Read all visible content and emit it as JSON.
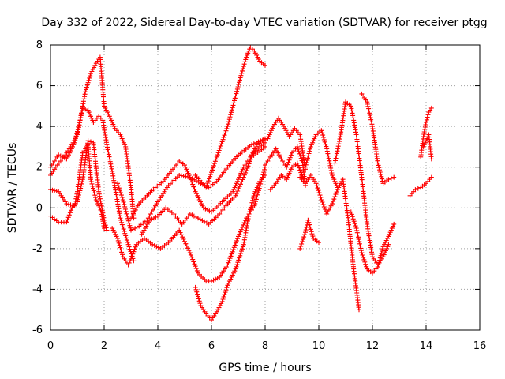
{
  "chart_data": {
    "type": "scatter",
    "title": "Day 332 of 2022, Sidereal Day-to-day VTEC variation (SDTVAR) for receiver ptgg",
    "xlabel": "GPS time / hours",
    "ylabel": "SDTVAR / TECUs",
    "xlim": [
      0,
      16
    ],
    "ylim": [
      -6,
      8
    ],
    "xticks": [
      "0",
      "2",
      "4",
      "6",
      "8",
      "10",
      "12",
      "14",
      "16"
    ],
    "yticks": [
      "-6",
      "-4",
      "-2",
      "0",
      "2",
      "4",
      "6",
      "8"
    ],
    "grid": true,
    "marker": "+",
    "color": "#ff0000",
    "series": [
      {
        "x": [
          0.0,
          0.3,
          0.6,
          0.9,
          1.1,
          1.3,
          1.5,
          1.7,
          1.85,
          2.0,
          2.2,
          2.4,
          2.6,
          2.8,
          3.0,
          3.1
        ],
        "y": [
          2.0,
          2.6,
          2.4,
          3.2,
          4.3,
          5.7,
          6.6,
          7.1,
          7.4,
          5.0,
          4.5,
          3.9,
          3.6,
          3.0,
          1.0,
          -0.5
        ]
      },
      {
        "x": [
          0.0,
          0.2,
          0.5,
          0.8,
          1.0,
          1.2,
          1.4,
          1.6,
          1.8,
          1.95,
          2.1,
          2.3,
          2.6,
          2.9,
          3.1
        ],
        "y": [
          1.6,
          2.0,
          2.5,
          3.1,
          3.6,
          4.9,
          4.8,
          4.2,
          4.5,
          4.3,
          3.1,
          1.8,
          -0.5,
          -1.8,
          -2.6
        ]
      },
      {
        "x": [
          0.0,
          0.3,
          0.6,
          0.8,
          1.0,
          1.2,
          1.4,
          1.6,
          1.8,
          2.0,
          2.1
        ],
        "y": [
          -0.4,
          -0.7,
          -0.7,
          0.0,
          0.3,
          1.4,
          3.3,
          3.2,
          0.8,
          -0.6,
          -1.1
        ]
      },
      {
        "x": [
          0.0,
          0.3,
          0.6,
          0.9,
          1.0,
          1.2,
          1.4,
          1.5,
          1.7,
          1.9,
          2.0
        ],
        "y": [
          0.9,
          0.8,
          0.2,
          0.1,
          0.8,
          2.7,
          3.1,
          1.4,
          0.4,
          -0.2,
          -1.0
        ]
      },
      {
        "x": [
          2.3,
          2.5,
          2.7,
          2.9,
          3.0,
          3.2,
          3.5,
          3.8,
          4.1,
          4.4,
          4.8,
          5.2,
          5.5,
          5.8,
          6.0,
          6.3,
          6.6,
          7.0,
          7.3,
          7.6,
          7.9,
          8.0
        ],
        "y": [
          -1.0,
          -1.5,
          -2.4,
          -2.8,
          -2.5,
          -1.8,
          -1.5,
          -1.8,
          -2.0,
          -1.7,
          -1.1,
          -2.2,
          -3.2,
          -3.6,
          -3.6,
          -3.4,
          -2.8,
          -1.4,
          -0.5,
          0.1,
          1.5,
          2.0
        ]
      },
      {
        "x": [
          2.5,
          2.7,
          3.0,
          3.3,
          3.6,
          4.0,
          4.4,
          4.8,
          5.2,
          5.6,
          5.9,
          6.2,
          6.6,
          7.0,
          7.5,
          8.0
        ],
        "y": [
          1.2,
          0.4,
          -1.1,
          -0.9,
          -0.6,
          0.3,
          1.1,
          1.6,
          1.5,
          1.2,
          1.0,
          1.3,
          2.0,
          2.6,
          3.1,
          3.4
        ]
      },
      {
        "x": [
          3.0,
          3.3,
          3.6,
          3.9,
          4.2,
          4.5,
          4.8,
          5.0,
          5.2,
          5.4,
          5.7,
          6.0,
          6.4,
          6.8,
          7.0,
          7.2,
          7.5,
          7.8,
          8.0
        ],
        "y": [
          -0.5,
          0.2,
          0.6,
          1.0,
          1.3,
          1.8,
          2.3,
          2.1,
          1.5,
          0.8,
          0.0,
          -0.2,
          0.3,
          0.8,
          1.4,
          2.0,
          2.6,
          3.0,
          3.2
        ]
      },
      {
        "x": [
          3.4,
          3.7,
          4.0,
          4.3,
          4.6,
          4.9,
          5.2,
          5.5,
          5.9,
          6.3,
          6.6,
          6.9,
          7.2,
          7.5,
          7.8,
          8.0
        ],
        "y": [
          -1.3,
          -0.6,
          -0.4,
          0.0,
          -0.3,
          -0.8,
          -0.3,
          -0.5,
          -0.8,
          -0.3,
          0.2,
          0.6,
          1.5,
          2.5,
          2.8,
          3.0
        ]
      },
      {
        "x": [
          5.4,
          5.6,
          5.8,
          6.0,
          6.2,
          6.4,
          6.6,
          6.9,
          7.2,
          7.4,
          7.6,
          7.8,
          8.0
        ],
        "y": [
          -3.9,
          -4.8,
          -5.2,
          -5.5,
          -5.1,
          -4.6,
          -3.8,
          -3.0,
          -1.8,
          -0.3,
          0.7,
          1.3,
          1.6
        ]
      },
      {
        "x": [
          5.4,
          5.8,
          6.2,
          6.6,
          6.9,
          7.1,
          7.3,
          7.45,
          7.6,
          7.8,
          8.0
        ],
        "y": [
          1.6,
          1.0,
          2.5,
          4.0,
          5.5,
          6.5,
          7.4,
          7.9,
          7.7,
          7.2,
          7.0
        ]
      },
      {
        "x": [
          7.5,
          7.7,
          7.9,
          8.1,
          8.3,
          8.5,
          8.7,
          8.9,
          9.1,
          9.3,
          9.5
        ],
        "y": [
          2.6,
          3.1,
          3.3,
          3.4,
          4.0,
          4.4,
          4.0,
          3.5,
          3.9,
          3.6,
          1.9
        ]
      },
      {
        "x": [
          8.0,
          8.2,
          8.4,
          8.6,
          8.8,
          9.0,
          9.2,
          9.4,
          9.5
        ],
        "y": [
          2.1,
          2.5,
          2.9,
          2.4,
          2.0,
          2.7,
          3.0,
          2.2,
          1.1
        ]
      },
      {
        "x": [
          8.2,
          8.4,
          8.6,
          8.8,
          9.0,
          9.2,
          9.4
        ],
        "y": [
          0.9,
          1.2,
          1.6,
          1.4,
          2.0,
          2.2,
          1.5
        ]
      },
      {
        "x": [
          9.3,
          9.5,
          9.7,
          9.9,
          10.1,
          10.3,
          10.5,
          10.7,
          10.9,
          11.1,
          11.3,
          11.5
        ],
        "y": [
          1.5,
          1.2,
          1.6,
          1.2,
          0.4,
          -0.3,
          0.2,
          0.9,
          1.4,
          -0.6,
          -3.0,
          -5.0
        ]
      },
      {
        "x": [
          9.5,
          9.7,
          9.9,
          10.1,
          10.3,
          10.5,
          10.7
        ],
        "y": [
          2.0,
          3.0,
          3.6,
          3.8,
          2.9,
          1.6,
          1.0
        ]
      },
      {
        "x": [
          10.6,
          10.8,
          11.0,
          11.2,
          11.4,
          11.6,
          11.8,
          12.0,
          12.2,
          12.4,
          12.6
        ],
        "y": [
          2.2,
          3.5,
          5.2,
          5.0,
          3.6,
          1.5,
          -0.8,
          -2.4,
          -2.8,
          -2.4,
          -1.8
        ]
      },
      {
        "x": [
          11.6,
          11.8,
          12.0,
          12.2,
          12.4,
          12.6,
          12.8
        ],
        "y": [
          5.6,
          5.2,
          4.0,
          2.2,
          1.2,
          1.4,
          1.5
        ]
      },
      {
        "x": [
          11.2,
          11.4,
          11.6,
          11.8,
          12.0,
          12.2,
          12.4,
          12.6,
          12.8
        ],
        "y": [
          -0.2,
          -1.0,
          -2.2,
          -3.0,
          -3.2,
          -2.9,
          -1.9,
          -1.4,
          -0.8
        ]
      },
      {
        "x": [
          9.3,
          9.5,
          9.6,
          9.8,
          10.0
        ],
        "y": [
          -2.0,
          -1.2,
          -0.6,
          -1.5,
          -1.7
        ]
      },
      {
        "x": [
          13.4,
          13.6,
          13.8,
          14.0,
          14.2
        ],
        "y": [
          0.6,
          0.9,
          1.0,
          1.2,
          1.5
        ]
      },
      {
        "x": [
          13.8,
          13.9,
          14.0,
          14.1,
          14.2
        ],
        "y": [
          2.5,
          3.5,
          4.2,
          4.7,
          4.9
        ]
      },
      {
        "x": [
          13.9,
          14.0,
          14.1,
          14.2
        ],
        "y": [
          3.0,
          3.3,
          3.6,
          2.4
        ]
      }
    ]
  }
}
